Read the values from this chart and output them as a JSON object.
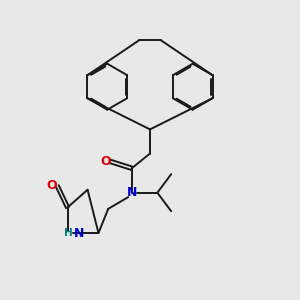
{
  "bg_color": "#e8e8e8",
  "bond_color": "#1a1a1a",
  "N_color": "#0000cc",
  "O_color": "#dd0000",
  "NH_color": "#008080",
  "figsize": [
    3.0,
    3.0
  ],
  "dpi": 100,
  "xlim": [
    0,
    10
  ],
  "ylim": [
    0,
    10
  ]
}
